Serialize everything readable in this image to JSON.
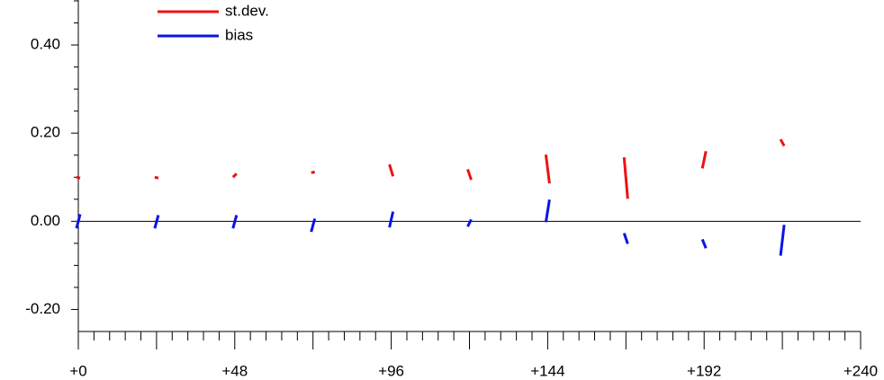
{
  "chart_data": {
    "type": "segment",
    "x": [
      0,
      24,
      48,
      72,
      96,
      120,
      144,
      168,
      192,
      216
    ],
    "series": [
      {
        "name": "st.dev.",
        "color": "#ee1111",
        "start": [
          0.1,
          0.1,
          0.1,
          0.11,
          0.129,
          0.118,
          0.151,
          0.145,
          0.12,
          0.186
        ],
        "end": [
          0.098,
          0.098,
          0.108,
          0.112,
          0.102,
          0.094,
          0.086,
          0.051,
          0.159,
          0.171
        ]
      },
      {
        "name": "bias",
        "color": "#0a14e6",
        "start": [
          -0.016,
          -0.016,
          -0.016,
          -0.024,
          -0.014,
          -0.012,
          -0.002,
          -0.027,
          -0.041,
          -0.078
        ],
        "end": [
          0.016,
          0.014,
          0.014,
          0.006,
          0.022,
          0.004,
          0.049,
          -0.051,
          -0.061,
          -0.008
        ]
      }
    ],
    "xlim": [
      0,
      240
    ],
    "ylim": [
      -0.25,
      0.502
    ],
    "xticks": [
      {
        "value": 0,
        "label": "+0"
      },
      {
        "value": 48,
        "label": "+48"
      },
      {
        "value": 96,
        "label": "+96"
      },
      {
        "value": 144,
        "label": "+144"
      },
      {
        "value": 192,
        "label": "+192"
      },
      {
        "value": 240,
        "label": "+240"
      }
    ],
    "xmidticks": [
      24,
      72,
      120,
      168,
      216
    ],
    "xminorticks": [
      4.8,
      9.6,
      14.4,
      19.2,
      28.8,
      33.6,
      38.4,
      43.2,
      52.8,
      57.6,
      62.4,
      67.2,
      76.8,
      81.6,
      86.4,
      91.2,
      100.8,
      105.6,
      110.4,
      115.2,
      124.8,
      129.6,
      134.4,
      139.2,
      148.8,
      153.6,
      158.4,
      163.2,
      172.8,
      177.6,
      182.4,
      187.2,
      196.8,
      201.6,
      206.4,
      211.2,
      220.8,
      225.6,
      230.4,
      235.2
    ],
    "yticks": [
      {
        "value": -0.2,
        "label": "-0.20"
      },
      {
        "value": 0,
        "label": "0.00"
      },
      {
        "value": 0.2,
        "label": "0.20"
      },
      {
        "value": 0.4,
        "label": "0.40"
      }
    ],
    "yminorticks": [
      -0.15,
      -0.1,
      -0.05,
      0.05,
      0.1,
      0.15,
      0.25,
      0.3,
      0.35,
      0.45,
      0.5
    ],
    "zero_line": 0
  }
}
